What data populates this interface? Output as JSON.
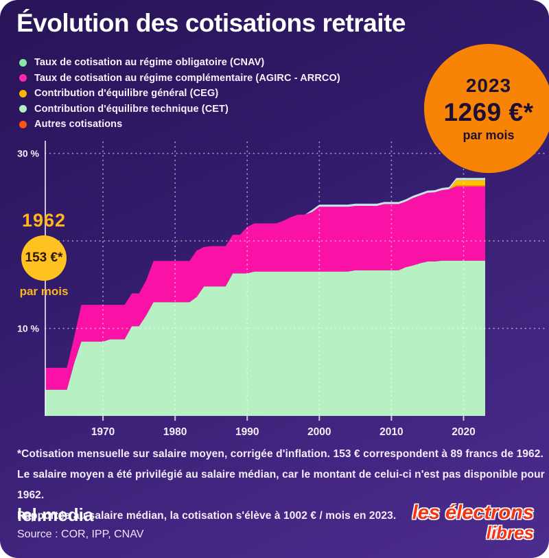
{
  "title": "Évolution des cotisations retraite",
  "colors": {
    "background_top": "#281457",
    "background_bottom": "#4c2c8e",
    "gridline": "rgba(255,255,255,0.55)",
    "axis": "rgba(255,255,255,0.75)",
    "tick_label": "#f4eefc"
  },
  "legend": [
    {
      "label": "Taux de cotisation au régime obligatoire (CNAV)",
      "color": "#8ee6a3"
    },
    {
      "label": "Taux de cotisation au régime complémentaire (AGIRC - ARRCO)",
      "color": "#fb2ba6"
    },
    {
      "label": "Contribution d'équilibre général (CEG)",
      "color": "#ffb400"
    },
    {
      "label": "Contribution d'équilibre technique (CET)",
      "color": "#b2f1c3"
    },
    {
      "label": "Autres cotisations",
      "color": "#fd5415"
    }
  ],
  "badges": {
    "start": {
      "year": "1962",
      "amount": "153 €*",
      "period": "par mois",
      "bg": "#ffc220"
    },
    "end": {
      "year": "2023",
      "amount": "1269 €*",
      "period": "par mois",
      "bg": "#f88405"
    }
  },
  "chart_data": {
    "type": "area",
    "stacked": true,
    "unit": "% du salaire brut",
    "x_start": 1962,
    "x_end": 2023,
    "x_ticks": [
      1970,
      1980,
      1990,
      2000,
      2010,
      2020
    ],
    "y_gridlines": [
      10,
      20,
      30
    ],
    "y_ticks": [
      {
        "value": 30,
        "label": "30 %"
      },
      {
        "value": 10,
        "label": "10 %"
      }
    ],
    "ylim": [
      0,
      31.3
    ],
    "grid": true,
    "legend_position": "top-left",
    "series": [
      {
        "key": "cnav",
        "name": "Taux de cotisation au régime obligatoire (CNAV)",
        "color": "#b7f0c3",
        "values": [
          3,
          3,
          3,
          3,
          6,
          8.5,
          8.5,
          8.5,
          8.5,
          8.75,
          8.75,
          8.75,
          10.25,
          10.25,
          11.5,
          13,
          13,
          13,
          13,
          13,
          13,
          13.6,
          14.8,
          14.8,
          14.8,
          14.8,
          16.3,
          16.3,
          16.3,
          16.5,
          16.5,
          16.5,
          16.5,
          16.5,
          16.5,
          16.5,
          16.5,
          16.5,
          16.5,
          16.5,
          16.5,
          16.5,
          16.5,
          16.65,
          16.65,
          16.65,
          16.65,
          16.65,
          16.65,
          16.65,
          17,
          17.2,
          17.45,
          17.65,
          17.65,
          17.75,
          17.75,
          17.75,
          17.75,
          17.75,
          17.75,
          17.75
        ]
      },
      {
        "key": "arrco",
        "name": "Taux de cotisation au régime complémentaire (AGIRC - ARRCO)",
        "color": "#f912a5",
        "values": [
          2.5,
          2.5,
          2.5,
          2.5,
          3,
          4.2,
          4.2,
          4.2,
          4.2,
          3.95,
          3.95,
          3.95,
          3.75,
          3.75,
          4,
          4.7,
          4.7,
          4.7,
          4.7,
          4.7,
          4.7,
          5.3,
          4.5,
          4.6,
          4.6,
          4.6,
          4.4,
          4.4,
          5.3,
          5.5,
          5.5,
          5.5,
          5.5,
          5.8,
          6.2,
          6.5,
          6.5,
          6.8,
          7.4,
          7.4,
          7.4,
          7.4,
          7.4,
          7.35,
          7.35,
          7.35,
          7.35,
          7.55,
          7.55,
          7.55,
          7.5,
          7.7,
          7.75,
          7.85,
          7.9,
          8.05,
          8.15,
          8.45,
          8.45,
          8.45,
          8.45,
          8.45
        ]
      },
      {
        "key": "autres",
        "name": "Autres cotisations",
        "color": "#ff7a1c",
        "values": [
          0,
          0,
          0,
          0,
          0,
          0,
          0,
          0,
          0,
          0,
          0,
          0,
          0,
          0,
          0,
          0,
          0,
          0,
          0,
          0,
          0,
          0,
          0,
          0,
          0,
          0,
          0,
          0,
          0,
          0,
          0,
          0,
          0,
          0,
          0,
          0,
          0,
          0,
          0,
          0,
          0,
          0,
          0,
          0,
          0,
          0,
          0,
          0,
          0,
          0,
          0,
          0,
          0,
          0,
          0,
          0,
          0,
          0.15,
          0.15,
          0.15,
          0.15,
          0.15
        ]
      },
      {
        "key": "ceg",
        "name": "Contribution d'équilibre général (CEG)",
        "color": "#ffc000",
        "values": [
          0,
          0,
          0,
          0,
          0,
          0,
          0,
          0,
          0,
          0,
          0,
          0,
          0,
          0,
          0,
          0,
          0,
          0,
          0,
          0,
          0,
          0,
          0,
          0,
          0,
          0,
          0,
          0,
          0,
          0,
          0,
          0,
          0,
          0,
          0,
          0,
          0,
          0,
          0,
          0,
          0,
          0,
          0,
          0,
          0,
          0,
          0,
          0,
          0,
          0,
          0,
          0,
          0,
          0,
          0,
          0,
          0,
          0.6,
          0.6,
          0.6,
          0.6,
          0.6
        ]
      },
      {
        "key": "cet",
        "name": "Contribution d'équilibre technique (CET)",
        "color": "#c9e3ea",
        "values": [
          0,
          0,
          0,
          0,
          0,
          0,
          0,
          0,
          0,
          0,
          0,
          0,
          0,
          0,
          0,
          0,
          0,
          0,
          0,
          0,
          0,
          0,
          0,
          0,
          0,
          0,
          0,
          0,
          0,
          0,
          0,
          0,
          0,
          0,
          0,
          0,
          0,
          0.25,
          0.25,
          0.25,
          0.25,
          0.25,
          0.25,
          0.25,
          0.25,
          0.25,
          0.25,
          0.25,
          0.25,
          0.25,
          0.25,
          0.25,
          0.25,
          0.25,
          0.25,
          0.25,
          0.25,
          0.25,
          0.25,
          0.25,
          0.25,
          0.25
        ]
      }
    ],
    "title": "Évolution des cotisations retraite"
  },
  "footnote_lines": [
    "*Cotisation mensuelle sur salaire moyen, corrigée d'inflation. 153 € correspondent à 89 francs de 1962.",
    "Le salaire moyen a été privilégié au salaire médian, car le montant de celui-ci n'est pas disponible pour 1962.",
    "Rapportée au salaire médian, la cotisation s'élève à 1002 € / mois en 2023."
  ],
  "footer": {
    "brand": "lel.media",
    "source": "Source : COR, IPP, CNAV",
    "logo_line1": "les électrons",
    "logo_line2": "libres"
  }
}
